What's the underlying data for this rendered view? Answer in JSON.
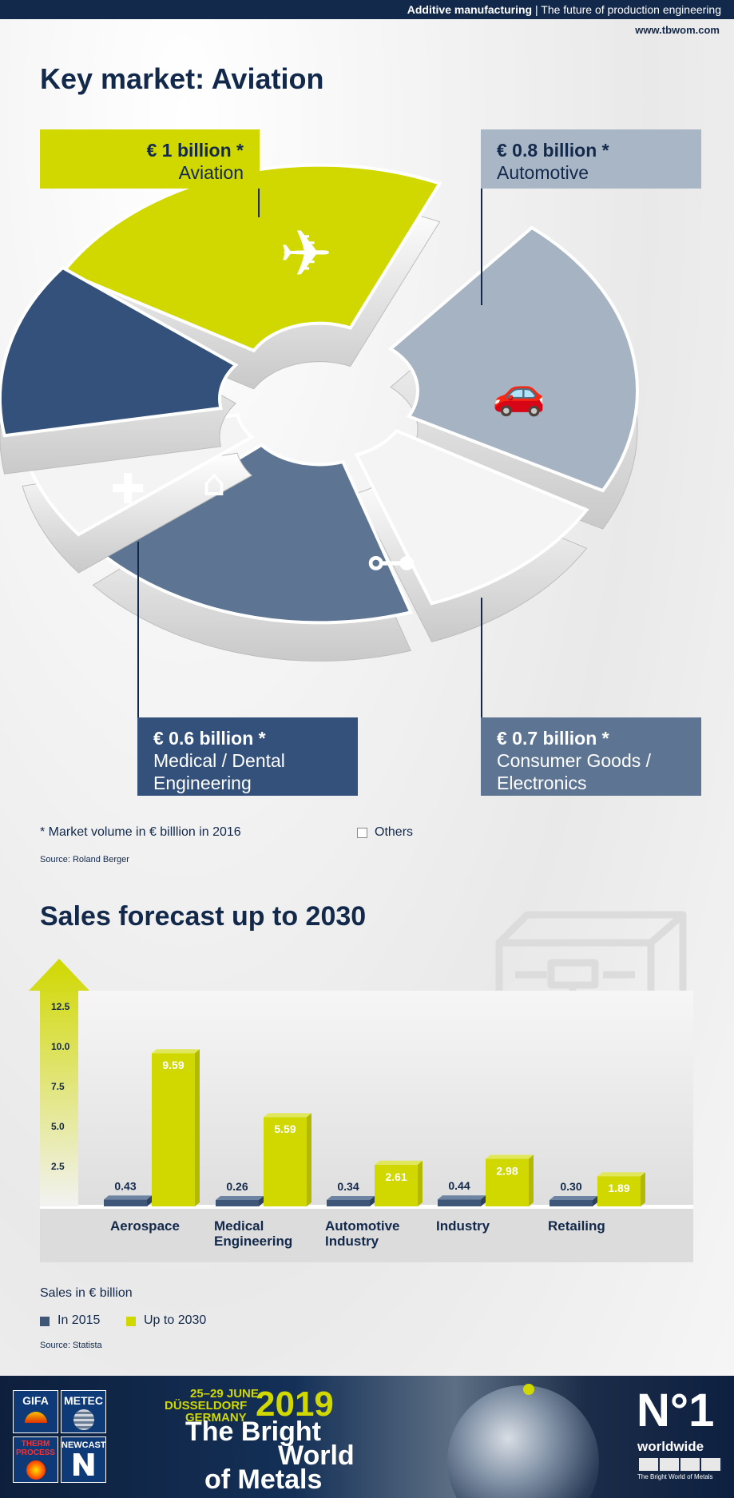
{
  "header": {
    "bold": "Additive manufacturing",
    "sep": "|",
    "rest": "The future of production engineering",
    "url": "www.tbwom.com"
  },
  "section1": {
    "title": "Key market: Aviation",
    "segments": [
      {
        "value": "€ 1 billion *",
        "label": "Aviation",
        "color": "#d0d800"
      },
      {
        "value": "€ 0.8 billion *",
        "label": "Automotive",
        "color": "#a6b3c3"
      },
      {
        "value": "€ 0.6 billion *",
        "label1": "Medical / Dental",
        "label2": "Engineering",
        "color": "#33517a"
      },
      {
        "value": "€ 0.7 billion *",
        "label1": "Consumer Goods /",
        "label2": "Electronics",
        "color": "#5d7593"
      }
    ],
    "footnote": "* Market volume in € billlion in 2016",
    "others": "Others",
    "source": "Source: Roland Berger"
  },
  "section2": {
    "title": "Sales forecast up to 2030",
    "icon_label": "3D",
    "units": "Sales in € billion",
    "legend_2015": "In 2015",
    "legend_2030": "Up to 2030",
    "source": "Source: Statista"
  },
  "chart_data": [
    {
      "type": "pie",
      "categories": [
        "Aviation",
        "Automotive",
        "Medical / Dental Engineering",
        "Consumer Goods / Electronics",
        "Others"
      ],
      "values": [
        1.0,
        0.8,
        0.6,
        0.7,
        null
      ],
      "value_labels": [
        "€ 1 billion *",
        "€ 0.8 billion *",
        "€ 0.6 billion *",
        "€ 0.7 billion *",
        ""
      ],
      "colors": [
        "#d0d800",
        "#a6b3c3",
        "#33517a",
        "#5d7593",
        "#f4f4f4"
      ]
    },
    {
      "type": "bar",
      "categories": [
        "Aerospace",
        "Medical Engineering",
        "Automotive Industry",
        "Industry",
        "Retailing"
      ],
      "category_lines": [
        [
          "Aerospace"
        ],
        [
          "Medical",
          "Engineering"
        ],
        [
          "Automotive",
          "Industry"
        ],
        [
          "Industry"
        ],
        [
          "Retailing"
        ]
      ],
      "series": [
        {
          "name": "In 2015",
          "values": [
            0.43,
            0.26,
            0.34,
            0.44,
            0.3
          ],
          "labels": [
            "0.43",
            "0.26",
            "0.34",
            "0.44",
            "0.30"
          ],
          "color": "#3e5678"
        },
        {
          "name": "Up to 2030",
          "values": [
            9.59,
            5.59,
            2.61,
            2.98,
            1.89
          ],
          "labels": [
            "9.59",
            "5.59",
            "2.61",
            "2.98",
            "1.89"
          ],
          "color": "#d0d800"
        }
      ],
      "yticks": [
        "2.5",
        "5.0",
        "7.5",
        "10.0",
        "12.5"
      ],
      "ytick_values": [
        2.5,
        5.0,
        7.5,
        10.0,
        12.5
      ],
      "ylim": [
        0,
        12.5
      ]
    }
  ],
  "footer": {
    "logos": [
      "GIFA",
      "METEC",
      "THERM PROCESS",
      "NEWCAST"
    ],
    "dates": "25–29 JUNE",
    "city": "DÜSSELDORF",
    "country": "GERMANY",
    "year": "2019",
    "line1": "The Bright",
    "line2": "World",
    "line3": "of Metals",
    "badge_big": "N°1",
    "badge_word": "worldwide",
    "badge_small": "The Bright World of Metals"
  }
}
